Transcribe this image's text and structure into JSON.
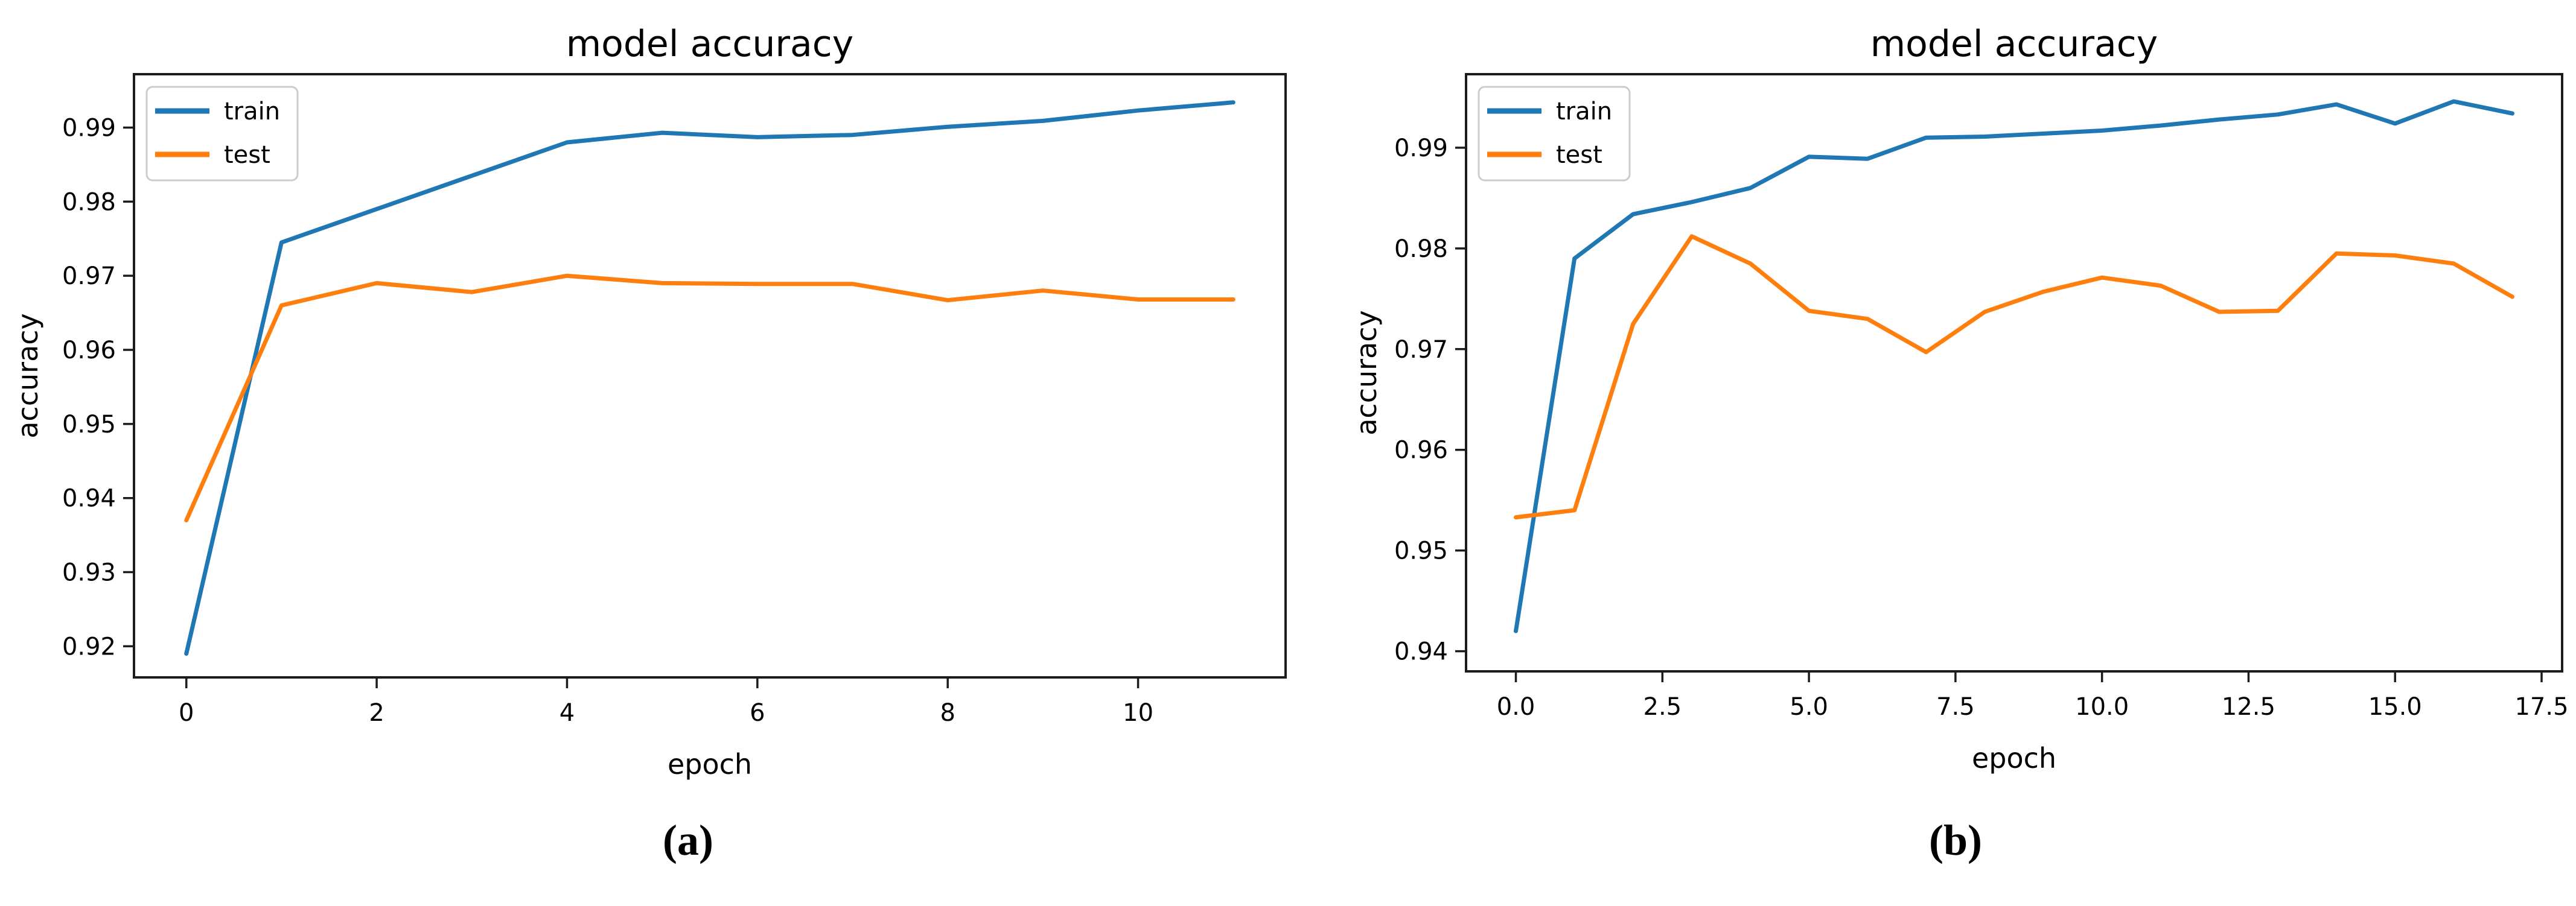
{
  "figure": {
    "background": "#ffffff",
    "text_color": "#000000",
    "spine_color": "#1c1c1c"
  },
  "chart_data": [
    {
      "type": "line",
      "title": "model accuracy",
      "xlabel": "epoch",
      "ylabel": "accuracy",
      "caption": "(a)",
      "legend": {
        "position": "upper left",
        "entries": [
          "train",
          "test"
        ]
      },
      "grid": false,
      "xlim": [
        -0.55,
        11.55
      ],
      "ylim": [
        0.9158,
        0.9972
      ],
      "xticks": {
        "values": [
          0,
          2,
          4,
          6,
          8,
          10
        ],
        "labels": [
          "0",
          "2",
          "4",
          "6",
          "8",
          "10"
        ]
      },
      "yticks": {
        "values": [
          0.92,
          0.93,
          0.94,
          0.95,
          0.96,
          0.97,
          0.98,
          0.99
        ],
        "labels": [
          "0.92",
          "0.93",
          "0.94",
          "0.95",
          "0.96",
          "0.97",
          "0.98",
          "0.99"
        ]
      },
      "x": [
        0,
        1,
        2,
        3,
        4,
        5,
        6,
        7,
        8,
        9,
        10,
        11
      ],
      "series": [
        {
          "name": "train",
          "color": "#1f77b4",
          "values": [
            0.919,
            0.9745,
            0.979,
            0.9835,
            0.988,
            0.9893,
            0.9887,
            0.989,
            0.9901,
            0.9909,
            0.9923,
            0.9934
          ]
        },
        {
          "name": "test",
          "color": "#ff7f0e",
          "values": [
            0.937,
            0.966,
            0.969,
            0.9678,
            0.97,
            0.969,
            0.9689,
            0.9689,
            0.9667,
            0.968,
            0.9668,
            0.9668
          ]
        }
      ]
    },
    {
      "type": "line",
      "title": "model accuracy",
      "xlabel": "epoch",
      "ylabel": "accuracy",
      "caption": "(b)",
      "legend": {
        "position": "upper left",
        "entries": [
          "train",
          "test"
        ]
      },
      "grid": false,
      "xlim": [
        -0.85,
        17.85
      ],
      "ylim": [
        0.938,
        0.9973
      ],
      "xticks": {
        "values": [
          0,
          2.5,
          5,
          7.5,
          10,
          12.5,
          15,
          17.5
        ],
        "labels": [
          "0.0",
          "2.5",
          "5.0",
          "7.5",
          "10.0",
          "12.5",
          "15.0",
          "17.5"
        ]
      },
      "yticks": {
        "values": [
          0.94,
          0.95,
          0.96,
          0.97,
          0.98,
          0.99
        ],
        "labels": [
          "0.94",
          "0.95",
          "0.96",
          "0.97",
          "0.98",
          "0.99"
        ]
      },
      "x": [
        0,
        1,
        2,
        3,
        4,
        5,
        6,
        7,
        8,
        9,
        10,
        11,
        12,
        13,
        14,
        15,
        16,
        17
      ],
      "series": [
        {
          "name": "train",
          "color": "#1f77b4",
          "values": [
            0.942,
            0.979,
            0.9834,
            0.9846,
            0.986,
            0.9891,
            0.9889,
            0.991,
            0.9911,
            0.9914,
            0.9917,
            0.9922,
            0.9928,
            0.9933,
            0.9943,
            0.9924,
            0.9946,
            0.9934
          ]
        },
        {
          "name": "test",
          "color": "#ff7f0e",
          "values": [
            0.9533,
            0.954,
            0.9725,
            0.9812,
            0.9785,
            0.9738,
            0.973,
            0.9697,
            0.9737,
            0.9757,
            0.9771,
            0.9763,
            0.9737,
            0.9738,
            0.9795,
            0.9793,
            0.9785,
            0.9752
          ]
        }
      ]
    }
  ]
}
